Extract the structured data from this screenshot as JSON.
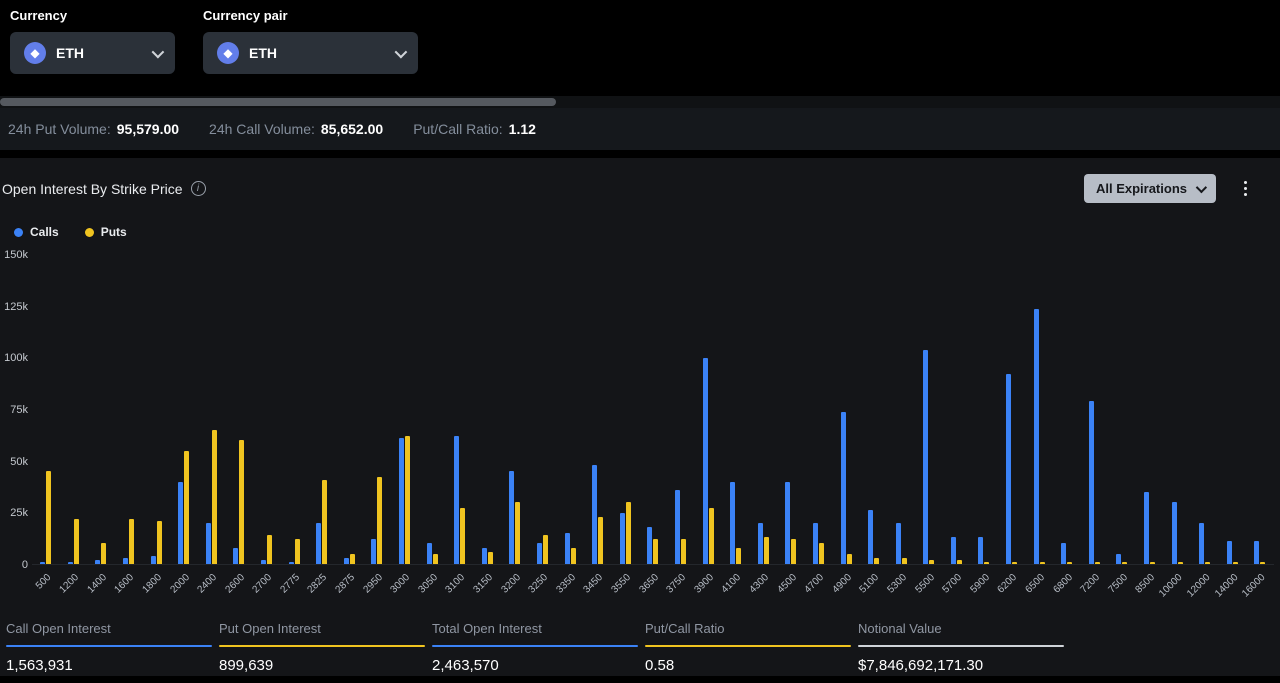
{
  "header": {
    "currency_label": "Currency",
    "currency_value": "ETH",
    "currency_pair_label": "Currency pair",
    "currency_pair_value": "ETH"
  },
  "volume_bar": {
    "put_volume_label": "24h Put Volume:",
    "put_volume_value": "95,579.00",
    "call_volume_label": "24h Call Volume:",
    "call_volume_value": "85,652.00",
    "ratio_label": "Put/Call Ratio:",
    "ratio_value": "1.12"
  },
  "panel": {
    "title": "Open Interest By Strike Price",
    "expirations_button": "All Expirations"
  },
  "colors": {
    "calls": "#3b82f6",
    "puts": "#f0c420",
    "eth_icon": "#627eea"
  },
  "chart_data": {
    "type": "bar",
    "title": "Open Interest By Strike Price",
    "xlabel": "Strike Price",
    "ylabel": "Open Interest",
    "ylim": [
      0,
      150000
    ],
    "grid": false,
    "legend_position": "top-left",
    "yticks": [
      {
        "label": "0",
        "value": 0
      },
      {
        "label": "25k",
        "value": 25000
      },
      {
        "label": "50k",
        "value": 50000
      },
      {
        "label": "75k",
        "value": 75000
      },
      {
        "label": "100k",
        "value": 100000
      },
      {
        "label": "125k",
        "value": 125000
      },
      {
        "label": "150k",
        "value": 150000
      }
    ],
    "categories": [
      "500",
      "1200",
      "1400",
      "1600",
      "1800",
      "2000",
      "2400",
      "2600",
      "2700",
      "2775",
      "2825",
      "2875",
      "2950",
      "3000",
      "3050",
      "3100",
      "3150",
      "3200",
      "3250",
      "3350",
      "3450",
      "3550",
      "3650",
      "3750",
      "3900",
      "4100",
      "4300",
      "4500",
      "4700",
      "4900",
      "5100",
      "5300",
      "5500",
      "5700",
      "5900",
      "6200",
      "6500",
      "6800",
      "7200",
      "7500",
      "8500",
      "10000",
      "12000",
      "14000",
      "16000"
    ],
    "series": [
      {
        "name": "Calls",
        "color": "#3b82f6",
        "values": [
          1000,
          1000,
          2000,
          3000,
          4000,
          40000,
          20000,
          8000,
          2000,
          1000,
          20000,
          3000,
          12000,
          61000,
          10000,
          62000,
          8000,
          45000,
          10000,
          15000,
          48000,
          25000,
          18000,
          36000,
          100000,
          40000,
          20000,
          40000,
          20000,
          74000,
          26000,
          20000,
          104000,
          13000,
          13000,
          92000,
          124000,
          10000,
          79000,
          5000,
          35000,
          30000,
          20000,
          11000,
          11000
        ]
      },
      {
        "name": "Puts",
        "color": "#f0c420",
        "values": [
          45000,
          22000,
          10000,
          22000,
          21000,
          55000,
          65000,
          60000,
          14000,
          12000,
          41000,
          5000,
          42000,
          62000,
          5000,
          27000,
          6000,
          30000,
          14000,
          8000,
          23000,
          30000,
          12000,
          12000,
          27000,
          8000,
          13000,
          12000,
          10000,
          5000,
          3000,
          3000,
          2000,
          2000,
          1000,
          1000,
          1000,
          1000,
          1000,
          1000,
          1000,
          1000,
          1000,
          1000,
          1000
        ]
      }
    ]
  },
  "summary": {
    "items": [
      {
        "label": "Call Open Interest",
        "value": "1,563,931",
        "accent": "#3b82f6"
      },
      {
        "label": "Put Open Interest",
        "value": "899,639",
        "accent": "#f0c420"
      },
      {
        "label": "Total Open Interest",
        "value": "2,463,570",
        "accent": "#3b82f6"
      },
      {
        "label": "Put/Call Ratio",
        "value": "0.58",
        "accent": "#f0c420"
      },
      {
        "label": "Notional Value",
        "value": "$7,846,692,171.30",
        "accent": "#cfd3d8"
      }
    ]
  }
}
